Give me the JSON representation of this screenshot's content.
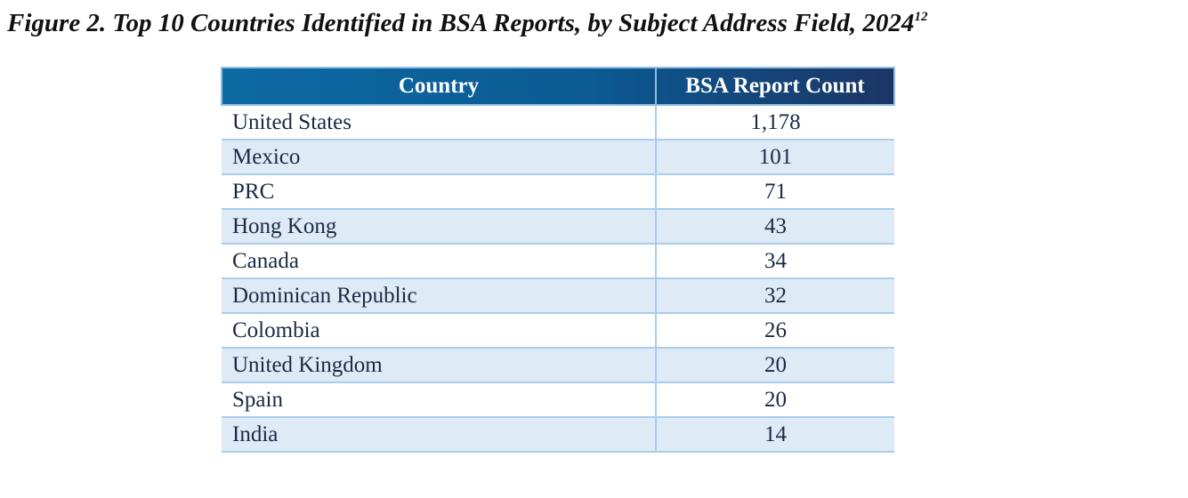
{
  "title": {
    "text": "Figure 2. Top 10 Countries Identified in BSA Reports, by Subject Address Field, 2024",
    "footnote": "12"
  },
  "table": {
    "header": [
      "Country",
      "BSA Report Count"
    ],
    "rows": [
      [
        "United States",
        "1,178"
      ],
      [
        "Mexico",
        "101"
      ],
      [
        "PRC",
        "71"
      ],
      [
        "Hong Kong",
        "43"
      ],
      [
        "Canada",
        "34"
      ],
      [
        "Dominican Republic",
        "32"
      ],
      [
        "Colombia",
        "26"
      ],
      [
        "United Kingdom",
        "20"
      ],
      [
        "Spain",
        "20"
      ],
      [
        "India",
        "14"
      ]
    ]
  }
}
